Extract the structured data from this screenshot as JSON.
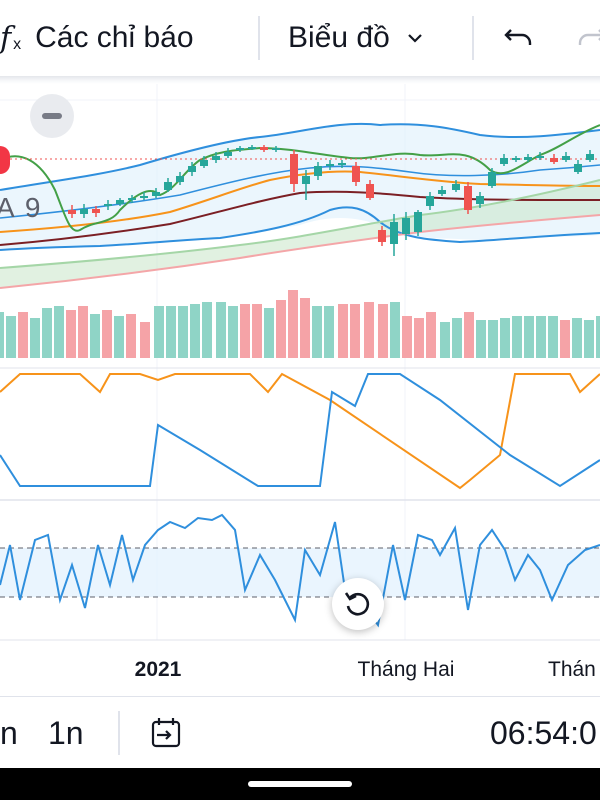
{
  "toolbar": {
    "indicators_label": "Các chỉ báo",
    "chart_type_label": "Biểu đồ"
  },
  "chart": {
    "overlay_label": "A 9",
    "time_axis": [
      "2021",
      "Tháng Hai",
      "Thán"
    ]
  },
  "bottombar": {
    "interval_1": "n",
    "interval_2": "1n",
    "clock": "06:54:0"
  },
  "colors": {
    "up": "#26a69a",
    "up_volume": "#8fd4c6",
    "down": "#ef5350",
    "down_volume": "#f5a3a7",
    "line_blue": "#2f8fdd",
    "line_orange": "#f7931a",
    "line_green": "#43a047",
    "line_maroon": "#7b1f24"
  },
  "icons": [
    "function-icon",
    "chevron-down-icon",
    "undo-icon",
    "redo-icon",
    "calendar-goto-icon",
    "reset-icon",
    "minus-icon"
  ]
}
